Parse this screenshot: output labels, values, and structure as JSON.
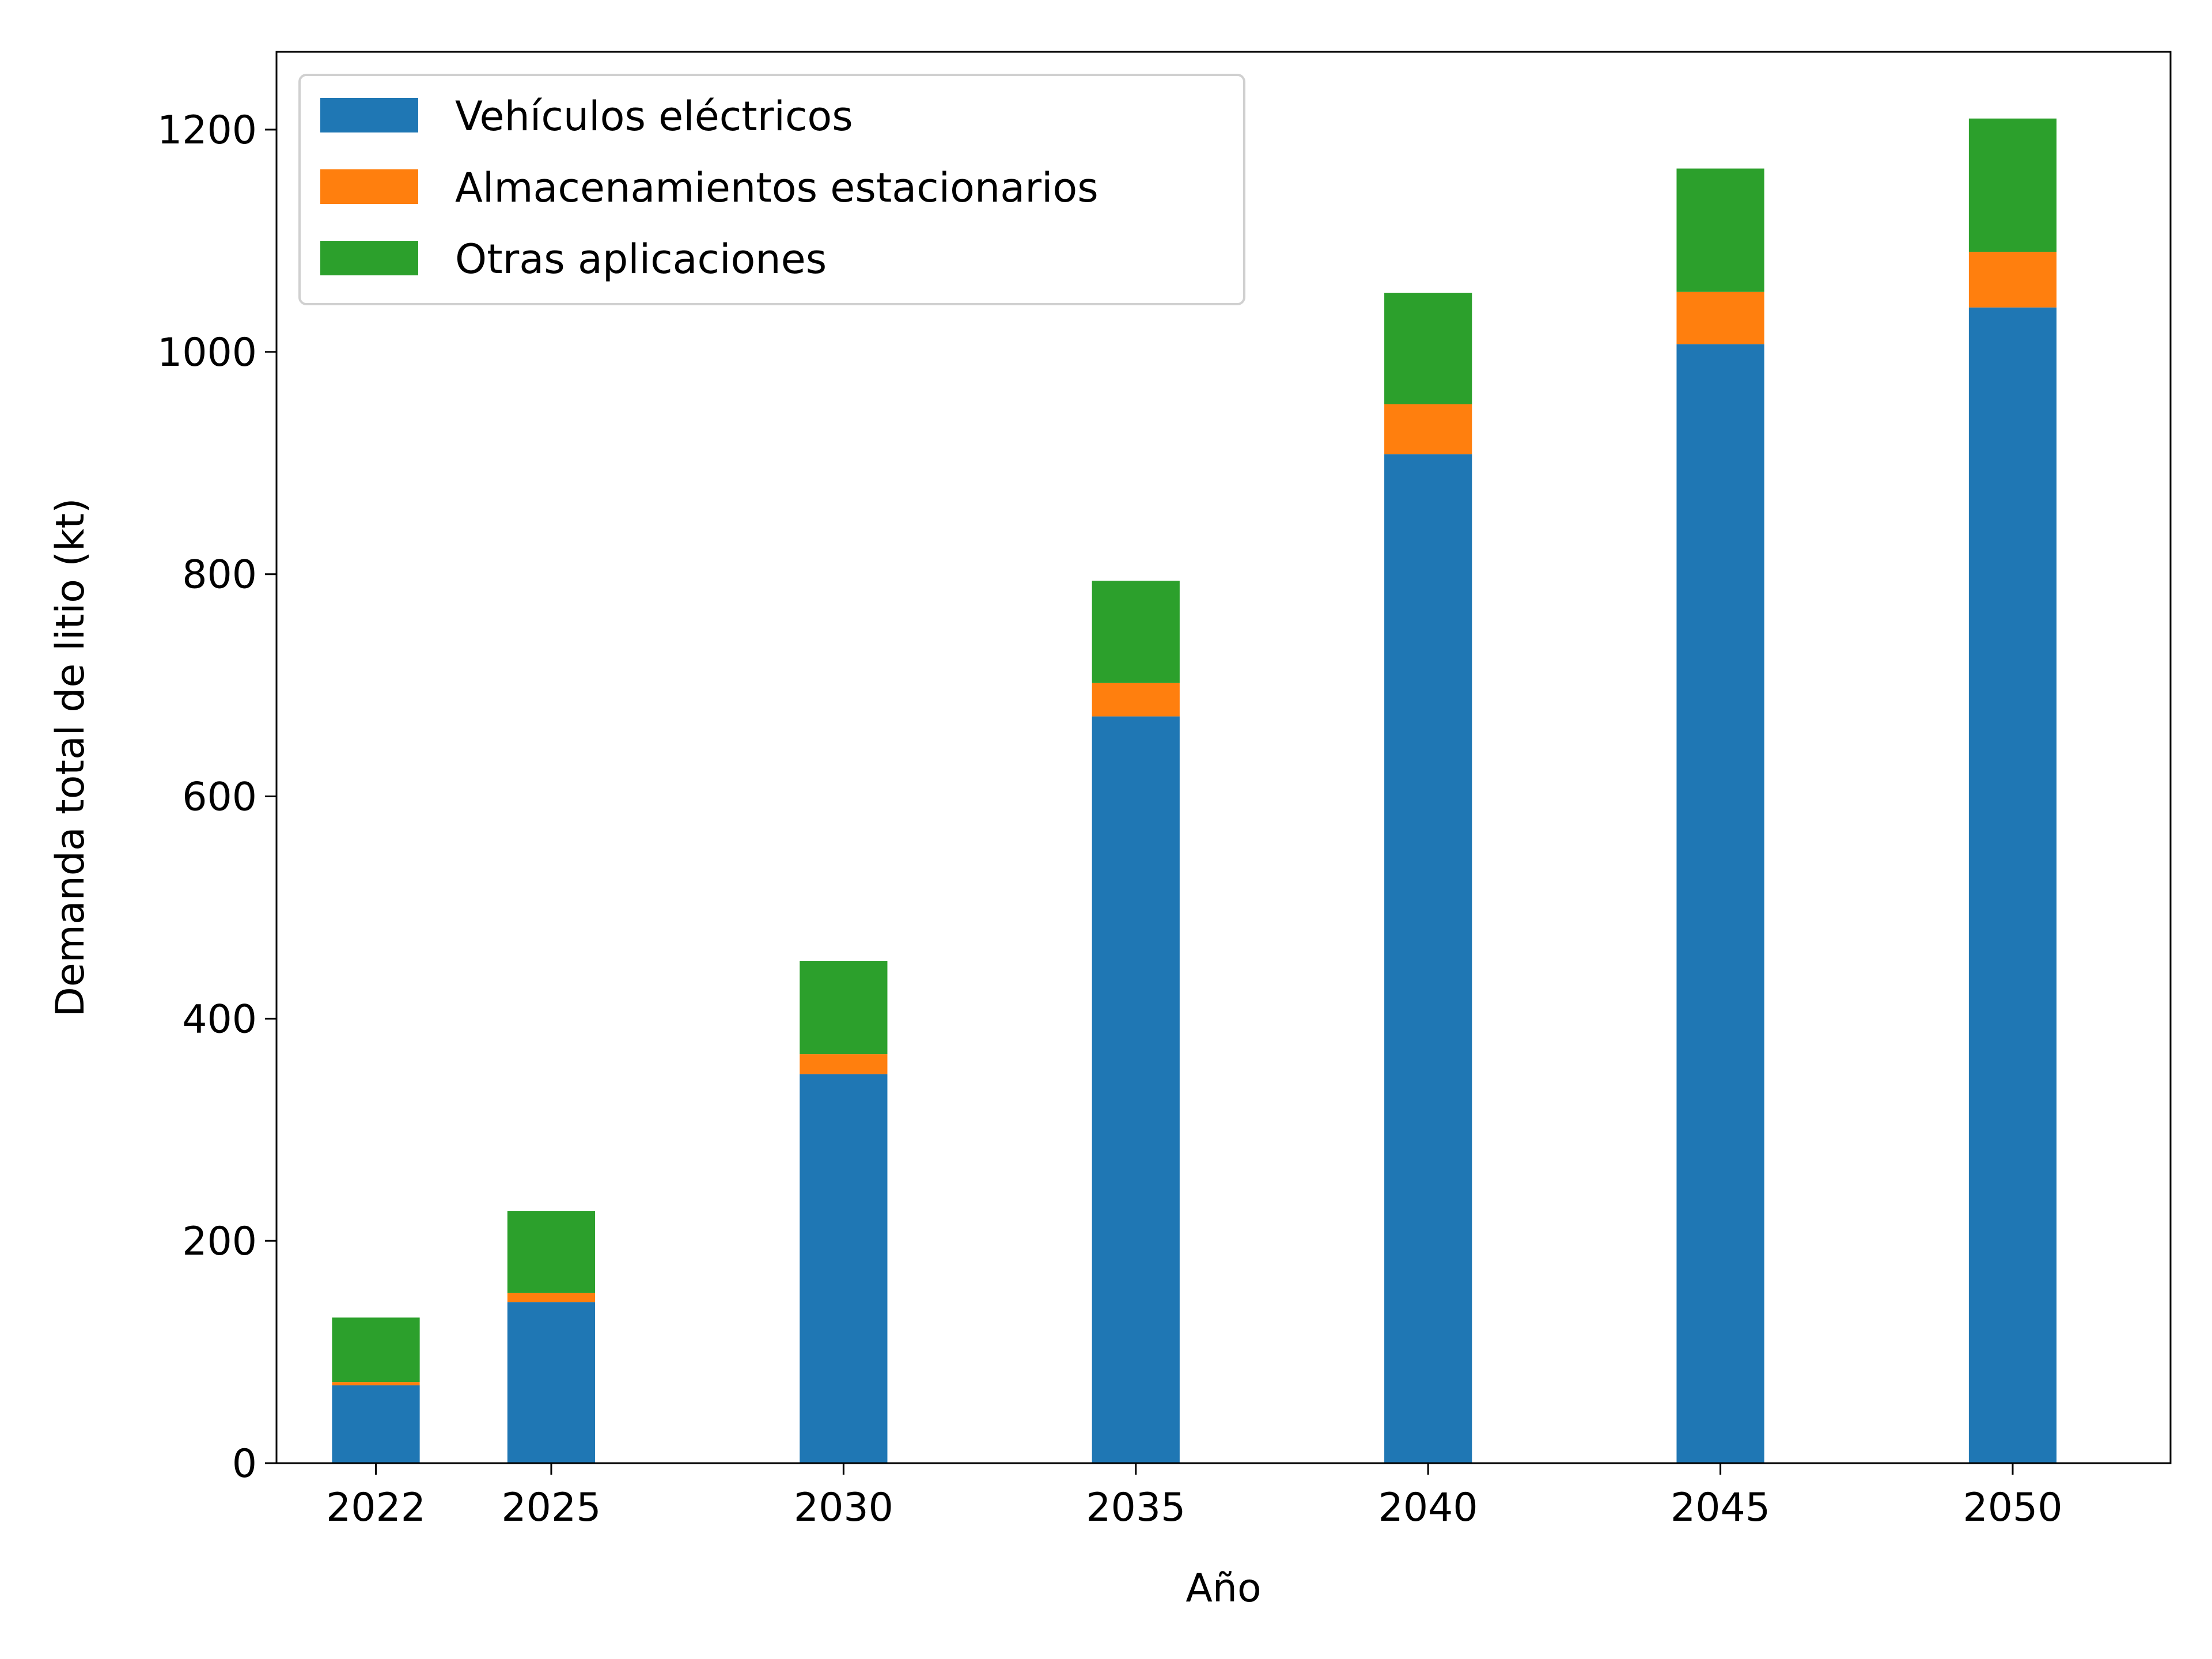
{
  "chart_data": {
    "type": "bar",
    "stacked": true,
    "categories": [
      "2022",
      "2025",
      "2030",
      "2035",
      "2040",
      "2045",
      "2050"
    ],
    "x": [
      2022,
      2025,
      2030,
      2035,
      2040,
      2045,
      2050
    ],
    "series": [
      {
        "name": "Vehículos eléctricos",
        "color": "#1f77b4",
        "values": [
          70,
          145,
          350,
          672,
          908,
          1007,
          1040
        ]
      },
      {
        "name": "Almacenamientos estacionarios",
        "color": "#ff7f0e",
        "values": [
          3,
          8,
          18,
          30,
          45,
          47,
          50
        ]
      },
      {
        "name": "Otras aplicaciones",
        "color": "#2ca02c",
        "values": [
          58,
          74,
          84,
          92,
          100,
          111,
          120
        ]
      }
    ],
    "title": "",
    "xlabel": "Año",
    "ylabel": "Demanda total de litio (kt)",
    "xlim": [
      2020.3,
      2052.7
    ],
    "ylim": [
      0,
      1270
    ],
    "yticks": [
      0,
      200,
      400,
      600,
      800,
      1000,
      1200
    ],
    "xticks": [
      "2022",
      "2025",
      "2030",
      "2035",
      "2040",
      "2045",
      "2050"
    ],
    "bar_width_years": 1.5,
    "grid": false,
    "legend_position": "top-left"
  }
}
